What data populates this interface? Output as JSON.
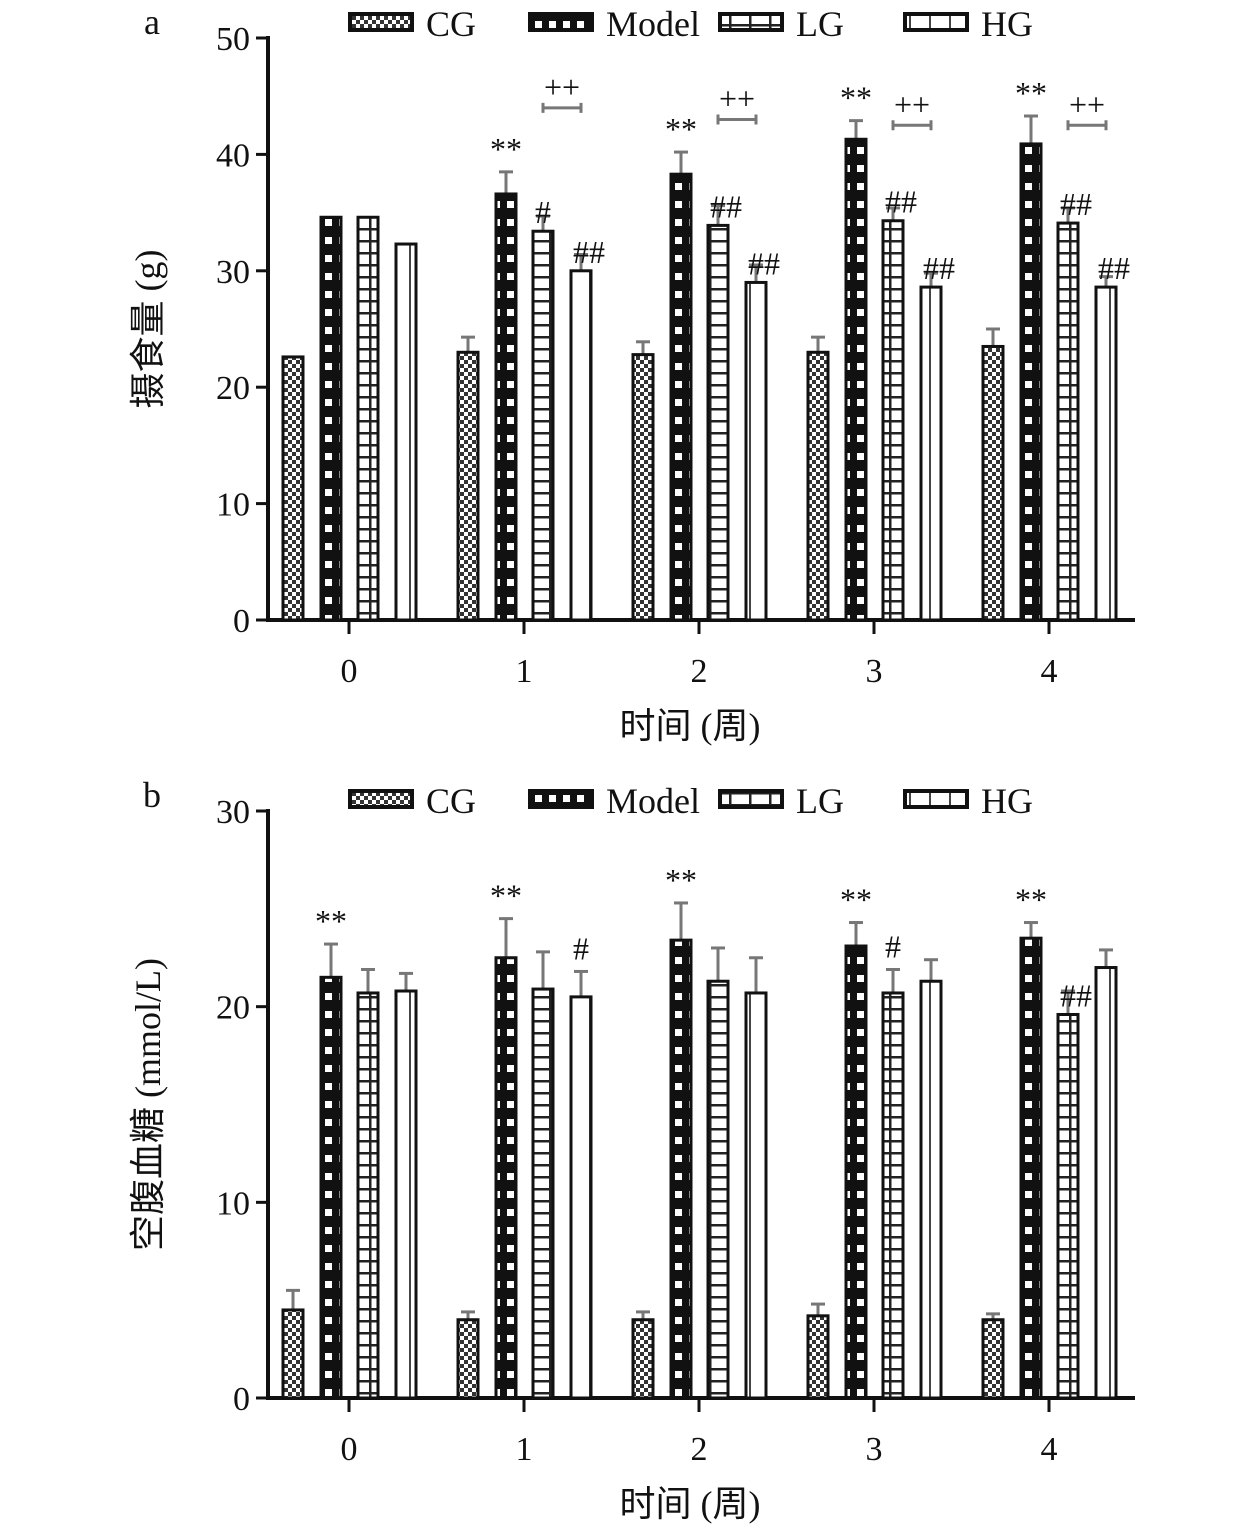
{
  "legend": [
    "CG",
    "Model",
    "LG",
    "HG"
  ],
  "chart_data": [
    {
      "panel": "a",
      "type": "bar",
      "ylabel": "摄食量 (g)",
      "xlabel": "时间 (周)",
      "ylim": [
        0,
        50
      ],
      "yticks": [
        0,
        10,
        20,
        30,
        40,
        50
      ],
      "categories": [
        "0",
        "1",
        "2",
        "3",
        "4"
      ],
      "series": [
        {
          "name": "CG",
          "values": [
            22.6,
            23.0,
            22.8,
            23.0,
            23.5
          ],
          "errors": [
            0,
            1.3,
            1.1,
            1.3,
            1.5
          ]
        },
        {
          "name": "Model",
          "values": [
            34.6,
            36.6,
            38.3,
            41.3,
            40.9
          ],
          "errors": [
            0,
            1.9,
            1.9,
            1.6,
            2.4
          ]
        },
        {
          "name": "LG",
          "values": [
            34.6,
            33.4,
            33.9,
            34.3,
            34.1
          ],
          "errors": [
            0,
            1.3,
            1.7,
            1.1,
            1.3
          ]
        },
        {
          "name": "HG",
          "values": [
            32.3,
            30.0,
            29.0,
            28.6,
            28.6
          ],
          "errors": [
            0,
            1.4,
            1.5,
            1.2,
            0.9
          ]
        }
      ],
      "annotations": [
        {
          "category": "1",
          "series": "Model",
          "text": "**"
        },
        {
          "category": "1",
          "series": "LG",
          "text": "#"
        },
        {
          "category": "1",
          "series": "HG",
          "text": "##"
        },
        {
          "category": "2",
          "series": "Model",
          "text": "**"
        },
        {
          "category": "2",
          "series": "LG",
          "text": "##"
        },
        {
          "category": "2",
          "series": "HG",
          "text": "##"
        },
        {
          "category": "3",
          "series": "Model",
          "text": "**"
        },
        {
          "category": "3",
          "series": "LG",
          "text": "##"
        },
        {
          "category": "3",
          "series": "HG",
          "text": "##"
        },
        {
          "category": "4",
          "series": "Model",
          "text": "**"
        },
        {
          "category": "4",
          "series": "LG",
          "text": "##"
        },
        {
          "category": "4",
          "series": "HG",
          "text": "##"
        }
      ],
      "brackets": [
        {
          "category": "1",
          "between": [
            "LG",
            "HG"
          ],
          "text": "++",
          "level": 44
        },
        {
          "category": "2",
          "between": [
            "LG",
            "HG"
          ],
          "text": "++",
          "level": 43
        },
        {
          "category": "3",
          "between": [
            "LG",
            "HG"
          ],
          "text": "++",
          "level": 42.5
        },
        {
          "category": "4",
          "between": [
            "LG",
            "HG"
          ],
          "text": "++",
          "level": 42.5
        }
      ]
    },
    {
      "panel": "b",
      "type": "bar",
      "ylabel": "空腹血糖 (mmol/L)",
      "xlabel": "时间 (周)",
      "ylim": [
        0,
        30
      ],
      "yticks": [
        0,
        10,
        20,
        30
      ],
      "categories": [
        "0",
        "1",
        "2",
        "3",
        "4"
      ],
      "series": [
        {
          "name": "CG",
          "values": [
            4.5,
            4.0,
            4.0,
            4.2,
            4.0
          ],
          "errors": [
            1.0,
            0.4,
            0.4,
            0.6,
            0.3
          ]
        },
        {
          "name": "Model",
          "values": [
            21.5,
            22.5,
            23.4,
            23.1,
            23.5
          ],
          "errors": [
            1.7,
            2.0,
            1.9,
            1.2,
            0.8
          ]
        },
        {
          "name": "LG",
          "values": [
            20.7,
            20.9,
            21.3,
            20.7,
            19.6
          ],
          "errors": [
            1.2,
            1.9,
            1.7,
            1.2,
            1.2
          ]
        },
        {
          "name": "HG",
          "values": [
            20.8,
            20.5,
            20.7,
            21.3,
            22.0
          ],
          "errors": [
            0.9,
            1.3,
            1.8,
            1.1,
            0.9
          ]
        }
      ],
      "annotations": [
        {
          "category": "0",
          "series": "Model",
          "text": "**"
        },
        {
          "category": "1",
          "series": "Model",
          "text": "**"
        },
        {
          "category": "1",
          "series": "HG",
          "text": "#"
        },
        {
          "category": "2",
          "series": "Model",
          "text": "**"
        },
        {
          "category": "3",
          "series": "Model",
          "text": "**"
        },
        {
          "category": "3",
          "series": "LG",
          "text": "#"
        },
        {
          "category": "4",
          "series": "Model",
          "text": "**"
        },
        {
          "category": "4",
          "series": "LG",
          "text": "##"
        }
      ],
      "brackets": []
    }
  ]
}
